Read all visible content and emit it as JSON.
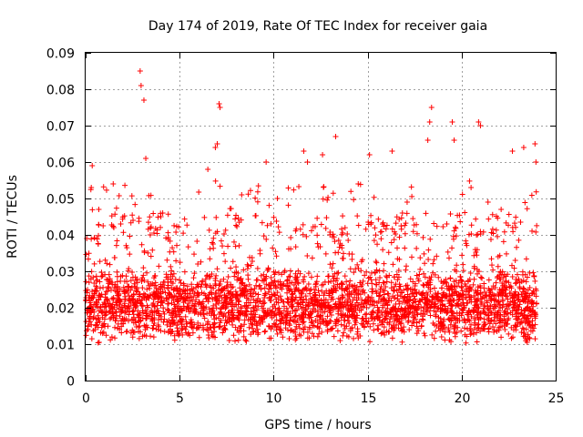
{
  "chart_data": {
    "type": "scatter",
    "title": "Day 174 of 2019, Rate Of TEC Index for receiver gaia",
    "xlabel": "GPS time / hours",
    "ylabel": "ROTI / TECUs",
    "xlim": [
      0,
      25
    ],
    "ylim": [
      0,
      0.09
    ],
    "xticks": [
      "0",
      "5",
      "10",
      "15",
      "20",
      "25"
    ],
    "yticks": [
      "0",
      "0.01",
      "0.02",
      "0.03",
      "0.04",
      "0.05",
      "0.06",
      "0.07",
      "0.08",
      "0.09"
    ],
    "grid": true,
    "marker": "+",
    "series_color": "#ff0000",
    "x_data_range": [
      0,
      24
    ],
    "typical_range": [
      0.01,
      0.03
    ],
    "outliers": [
      {
        "x": 2.9,
        "y": 0.085
      },
      {
        "x": 2.95,
        "y": 0.081
      },
      {
        "x": 3.1,
        "y": 0.077
      },
      {
        "x": 3.2,
        "y": 0.061
      },
      {
        "x": 0.35,
        "y": 0.059
      },
      {
        "x": 0.3,
        "y": 0.053
      },
      {
        "x": 7.1,
        "y": 0.076
      },
      {
        "x": 7.15,
        "y": 0.075
      },
      {
        "x": 7.0,
        "y": 0.065
      },
      {
        "x": 6.9,
        "y": 0.064
      },
      {
        "x": 6.5,
        "y": 0.058
      },
      {
        "x": 9.6,
        "y": 0.06
      },
      {
        "x": 11.6,
        "y": 0.063
      },
      {
        "x": 11.8,
        "y": 0.06
      },
      {
        "x": 12.6,
        "y": 0.062
      },
      {
        "x": 13.3,
        "y": 0.067
      },
      {
        "x": 15.1,
        "y": 0.062
      },
      {
        "x": 16.3,
        "y": 0.063
      },
      {
        "x": 18.2,
        "y": 0.066
      },
      {
        "x": 18.3,
        "y": 0.071
      },
      {
        "x": 18.4,
        "y": 0.075
      },
      {
        "x": 19.5,
        "y": 0.071
      },
      {
        "x": 19.6,
        "y": 0.066
      },
      {
        "x": 20.9,
        "y": 0.071
      },
      {
        "x": 21.0,
        "y": 0.07
      },
      {
        "x": 22.7,
        "y": 0.063
      },
      {
        "x": 23.3,
        "y": 0.064
      },
      {
        "x": 23.9,
        "y": 0.065
      },
      {
        "x": 23.95,
        "y": 0.06
      },
      {
        "x": 1.5,
        "y": 0.042
      },
      {
        "x": 4.1,
        "y": 0.046
      },
      {
        "x": 8.3,
        "y": 0.051
      },
      {
        "x": 10.2,
        "y": 0.05
      },
      {
        "x": 14.5,
        "y": 0.054
      },
      {
        "x": 17.1,
        "y": 0.049
      },
      {
        "x": 20.5,
        "y": 0.053
      },
      {
        "x": 22.1,
        "y": 0.047
      }
    ]
  }
}
